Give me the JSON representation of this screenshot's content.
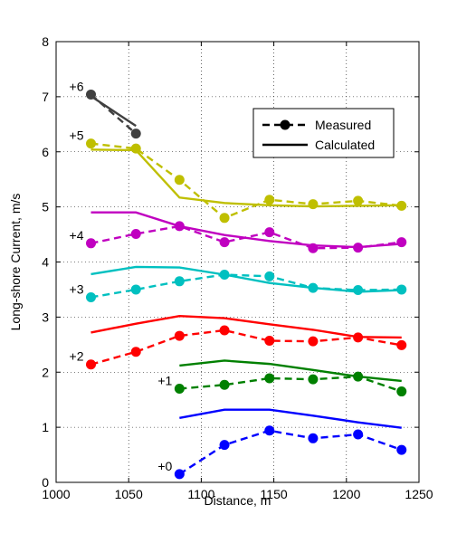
{
  "chart_data": {
    "type": "line",
    "title": "",
    "xlabel": "Distance, m",
    "ylabel": "Long-shore Current, m/s",
    "xlim": [
      1000,
      1250
    ],
    "ylim": [
      0,
      8
    ],
    "xticks": [
      1000,
      1050,
      1100,
      1150,
      1200,
      1250
    ],
    "yticks": [
      0,
      1,
      2,
      3,
      4,
      5,
      6,
      7,
      8
    ],
    "grid": true,
    "legend": {
      "placement": "top-right",
      "entries": [
        {
          "label": "Measured",
          "style": "dashed-marker"
        },
        {
          "label": "Calculated",
          "style": "solid"
        }
      ]
    },
    "series": [
      {
        "label": "+0",
        "color": "#0000ff",
        "measured": {
          "x": [
            1085,
            1116,
            1147,
            1177,
            1208,
            1238
          ],
          "y": [
            0.15,
            0.68,
            0.94,
            0.8,
            0.87,
            0.59
          ]
        },
        "calculated": {
          "x": [
            1085,
            1116,
            1147,
            1177,
            1208,
            1238
          ],
          "y": [
            1.17,
            1.32,
            1.32,
            1.21,
            1.09,
            0.99
          ]
        }
      },
      {
        "label": "+1",
        "color": "#008000",
        "measured": {
          "x": [
            1085,
            1116,
            1147,
            1177,
            1208,
            1238
          ],
          "y": [
            1.7,
            1.77,
            1.89,
            1.87,
            1.92,
            1.65
          ]
        },
        "calculated": {
          "x": [
            1085,
            1116,
            1147,
            1177,
            1208,
            1238
          ],
          "y": [
            2.12,
            2.21,
            2.15,
            2.04,
            1.92,
            1.84
          ]
        }
      },
      {
        "label": "+2",
        "color": "#ff0000",
        "measured": {
          "x": [
            1024,
            1055,
            1085,
            1116,
            1147,
            1177,
            1208,
            1238
          ],
          "y": [
            2.14,
            2.37,
            2.66,
            2.76,
            2.57,
            2.56,
            2.63,
            2.49
          ]
        },
        "calculated": {
          "x": [
            1024,
            1055,
            1085,
            1116,
            1147,
            1177,
            1208,
            1238
          ],
          "y": [
            2.72,
            2.88,
            3.02,
            2.98,
            2.87,
            2.77,
            2.64,
            2.63
          ]
        }
      },
      {
        "label": "+3",
        "color": "#00c0c0",
        "measured": {
          "x": [
            1024,
            1055,
            1085,
            1116,
            1147,
            1177,
            1208,
            1238
          ],
          "y": [
            3.36,
            3.5,
            3.65,
            3.77,
            3.74,
            3.53,
            3.49,
            3.5
          ]
        },
        "calculated": {
          "x": [
            1024,
            1055,
            1085,
            1116,
            1147,
            1177,
            1208,
            1238
          ],
          "y": [
            3.78,
            3.91,
            3.9,
            3.77,
            3.62,
            3.53,
            3.46,
            3.49
          ]
        }
      },
      {
        "label": "+4",
        "color": "#c000c0",
        "measured": {
          "x": [
            1024,
            1055,
            1085,
            1116,
            1147,
            1177,
            1208,
            1238
          ],
          "y": [
            4.34,
            4.51,
            4.65,
            4.36,
            4.54,
            4.25,
            4.26,
            4.36
          ]
        },
        "calculated": {
          "x": [
            1024,
            1055,
            1085,
            1116,
            1147,
            1177,
            1208,
            1238
          ],
          "y": [
            4.9,
            4.9,
            4.65,
            4.49,
            4.38,
            4.3,
            4.27,
            4.33
          ]
        }
      },
      {
        "label": "+5",
        "color": "#bfbf00",
        "measured": {
          "x": [
            1024,
            1055,
            1085,
            1116,
            1147,
            1177,
            1208,
            1238
          ],
          "y": [
            6.15,
            6.06,
            5.49,
            4.8,
            5.13,
            5.05,
            5.11,
            5.02
          ]
        },
        "calculated": {
          "x": [
            1024,
            1055,
            1085,
            1116,
            1147,
            1177,
            1208,
            1238
          ],
          "y": [
            6.04,
            6.03,
            5.17,
            5.07,
            5.03,
            5.01,
            5.02,
            5.03
          ]
        }
      },
      {
        "label": "+6",
        "color": "#404040",
        "measured": {
          "x": [
            1024,
            1055
          ],
          "y": [
            7.04,
            6.33
          ]
        },
        "calculated": {
          "x": [
            1024,
            1055
          ],
          "y": [
            7.01,
            6.47
          ]
        }
      }
    ]
  }
}
